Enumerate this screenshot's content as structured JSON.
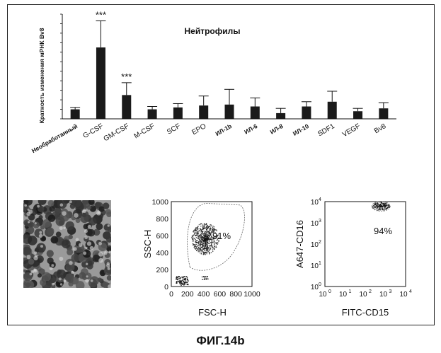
{
  "figure_label": "ФИГ.14b",
  "colors": {
    "ink": "#111111",
    "bar": "#1a1a1a",
    "frame": "#222222",
    "gate": "#666666"
  },
  "chart_data": [
    {
      "type": "bar",
      "title": "Нейтрофилы",
      "ylabel": "Кратность изменения мРНК Bv8",
      "xlabel": "",
      "ylim": [
        0,
        11
      ],
      "grid": false,
      "legend": "none",
      "categories": [
        "Необработанный",
        "G-CSF",
        "GM-CSF",
        "M-CSF",
        "SCF",
        "EPO",
        "ИЛ-1b",
        "ИЛ-6",
        "ИЛ-8",
        "ИЛ-10",
        "SDF1",
        "VEGF",
        "Bv8"
      ],
      "values": [
        1.0,
        7.5,
        2.5,
        1.0,
        1.2,
        1.4,
        1.5,
        1.3,
        0.6,
        1.3,
        1.8,
        0.8,
        1.1
      ],
      "error_plus": [
        0.2,
        2.8,
        1.3,
        0.3,
        0.4,
        1.0,
        1.6,
        0.9,
        0.5,
        0.5,
        1.1,
        0.3,
        0.6
      ],
      "significance": [
        {
          "category": "G-CSF",
          "label": "***"
        },
        {
          "category": "GM-CSF",
          "label": "***"
        }
      ]
    },
    {
      "type": "scatter",
      "xlabel": "FSC-H",
      "ylabel": "SSC-H",
      "xlim": [
        0,
        1000
      ],
      "ylim": [
        0,
        1000
      ],
      "xticks": [
        "0",
        "200",
        "400",
        "600",
        "800",
        "1000"
      ],
      "yticks": [
        "0",
        "200",
        "400",
        "600",
        "800",
        "1000"
      ],
      "annotation": "91%",
      "population_center": [
        420,
        560
      ]
    },
    {
      "type": "scatter",
      "scale": "log",
      "xlabel": "FITC-CD15",
      "ylabel": "A647-CD16",
      "xlim": [
        1,
        10000
      ],
      "ylim": [
        1,
        10000
      ],
      "xtick_exponents": [
        "0",
        "1",
        "2",
        "3",
        "4"
      ],
      "ytick_exponents": [
        "0",
        "1",
        "2",
        "3",
        "4"
      ],
      "annotation": "94%",
      "population_center": [
        600,
        6000
      ]
    }
  ]
}
